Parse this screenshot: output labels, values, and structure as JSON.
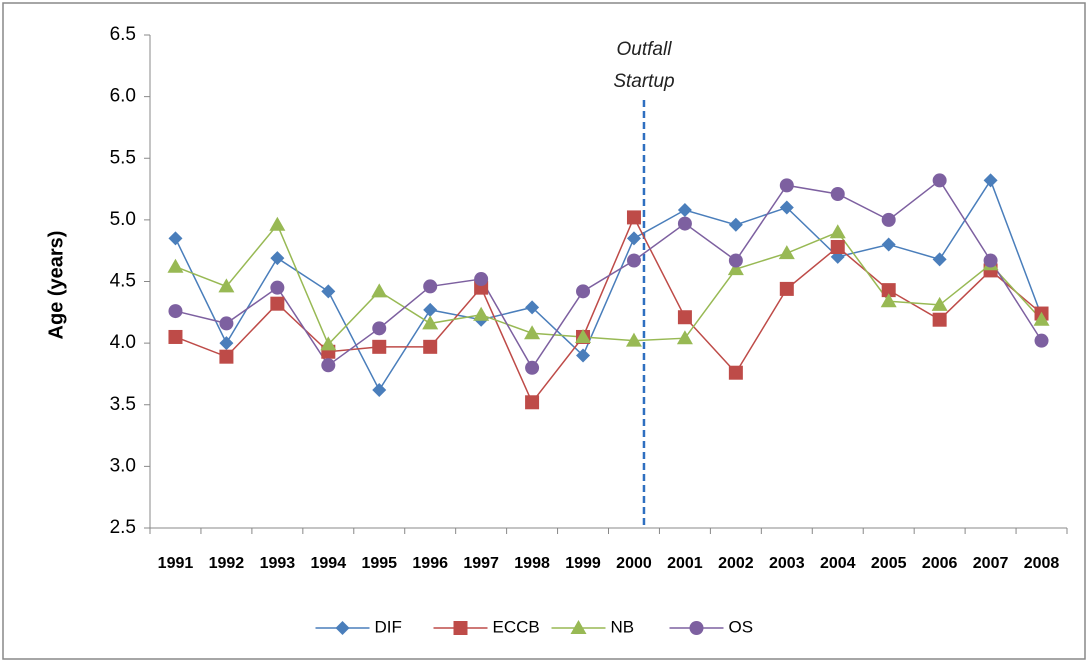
{
  "chart_data": {
    "type": "line",
    "y_label": "Age (years)",
    "annotation": [
      "Outfall",
      "Startup"
    ],
    "categories": [
      "1991",
      "1992",
      "1993",
      "1994",
      "1995",
      "1996",
      "1997",
      "1998",
      "1999",
      "2000",
      "2001",
      "2002",
      "2003",
      "2004",
      "2005",
      "2006",
      "2007",
      "2008"
    ],
    "series": [
      {
        "name": "DIF",
        "color": "#4a7ebb",
        "marker": "diamond",
        "values": [
          4.85,
          4.0,
          4.69,
          4.42,
          3.62,
          4.27,
          4.19,
          4.29,
          3.9,
          4.85,
          5.08,
          4.96,
          5.1,
          4.7,
          4.8,
          4.68,
          5.32,
          4.22
        ]
      },
      {
        "name": "ECCB",
        "color": "#be4b48",
        "marker": "square",
        "values": [
          4.05,
          3.89,
          4.32,
          3.93,
          3.97,
          3.97,
          4.45,
          3.52,
          4.05,
          5.02,
          4.21,
          3.76,
          4.44,
          4.78,
          4.43,
          4.19,
          4.59,
          4.24
        ]
      },
      {
        "name": "NB",
        "color": "#98b954",
        "marker": "triangle",
        "values": [
          4.62,
          4.46,
          4.96,
          3.99,
          4.42,
          4.16,
          4.23,
          4.08,
          4.05,
          4.02,
          4.04,
          4.6,
          4.73,
          4.9,
          4.34,
          4.31,
          4.64,
          4.19
        ]
      },
      {
        "name": "OS",
        "color": "#7d60a0",
        "marker": "circle",
        "values": [
          4.26,
          4.16,
          4.45,
          3.82,
          4.12,
          4.46,
          4.52,
          3.8,
          4.42,
          4.67,
          4.97,
          4.67,
          5.28,
          5.21,
          5.0,
          5.32,
          4.67,
          4.02
        ]
      }
    ],
    "ylim": [
      2.5,
      6.5
    ],
    "yticks": [
      2.5,
      {
        "value": 3,
        "label": "3.0"
      },
      3.5,
      {
        "value": 4,
        "label": "4.0"
      },
      4.5,
      {
        "value": 5,
        "label": "5.0"
      },
      5.5,
      {
        "value": 6,
        "label": "6.0"
      },
      6.5
    ],
    "grid": false,
    "legend": "bottom"
  }
}
